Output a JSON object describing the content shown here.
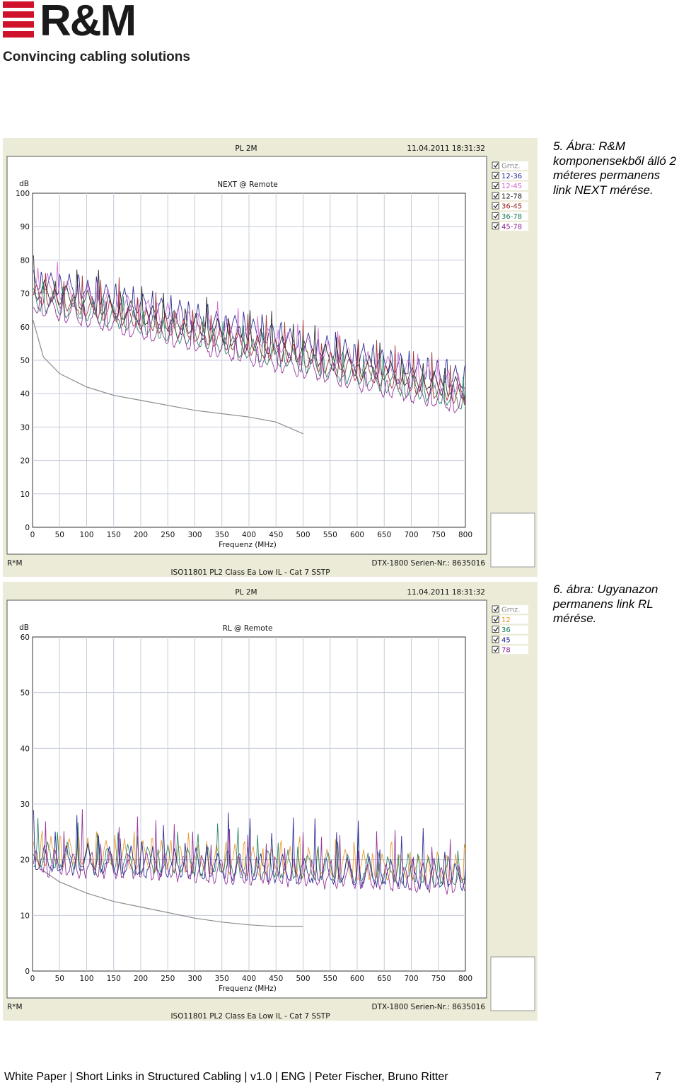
{
  "brand": {
    "name": "R&M",
    "tagline": "Convincing cabling solutions",
    "color": "#d0112b"
  },
  "figures": [
    {
      "caption": "5. Ábra: R&M komponensekből álló 2 méteres permanens link NEXT mérése.",
      "header_title": "PL 2M",
      "header_date": "11.04.2011 18:31:32",
      "footer_left": "R*M",
      "footer_device": "DTX-1800  Serien-Nr.: 8635016",
      "footer_standard": "ISO11801 PL2 Class Ea Low IL - Cat 7 SSTP",
      "chart_data": {
        "type": "line",
        "title": "NEXT @ Remote",
        "ylabel": "dB",
        "xlabel": "Frequenz (MHz)",
        "xlim": [
          0,
          800
        ],
        "ylim": [
          0,
          100
        ],
        "x_ticks": [
          0,
          50,
          100,
          150,
          200,
          250,
          300,
          350,
          400,
          450,
          500,
          550,
          600,
          650,
          700,
          750,
          800
        ],
        "y_ticks": [
          0,
          10,
          20,
          30,
          40,
          50,
          60,
          70,
          80,
          90,
          100
        ],
        "grid": true,
        "legend": [
          {
            "name": "Grnz.",
            "color": "#8c8c8c"
          },
          {
            "name": "12-36",
            "color": "#1a1a8c"
          },
          {
            "name": "12-45",
            "color": "#d060d0"
          },
          {
            "name": "12-78",
            "color": "#1a1a1a"
          },
          {
            "name": "36-45",
            "color": "#9c2020"
          },
          {
            "name": "36-78",
            "color": "#187a5a"
          },
          {
            "name": "45-78",
            "color": "#8a2090"
          }
        ],
        "series": [
          {
            "name": "Grnz.",
            "x": [
              1,
              20,
              50,
              100,
              150,
              200,
              250,
              300,
              350,
              400,
              450,
              500
            ],
            "y": [
              62,
              51,
              46,
              42,
              39.5,
              38,
              36.5,
              35,
              34,
              33,
              31.5,
              28
            ]
          }
        ]
      }
    },
    {
      "caption": "6. ábra: Ugyanazon permanens link RL mérése.",
      "header_title": "PL 2M",
      "header_date": "11.04.2011 18:31:32",
      "footer_left": "R*M",
      "footer_device": "DTX-1800  Serien-Nr.: 8635016",
      "footer_standard": "ISO11801 PL2 Class Ea Low IL - Cat 7 SSTP",
      "chart_data": {
        "type": "line",
        "title": "RL @ Remote",
        "ylabel": "dB",
        "xlabel": "Frequenz (MHz)",
        "xlim": [
          0,
          800
        ],
        "ylim": [
          0,
          60
        ],
        "x_ticks": [
          0,
          50,
          100,
          150,
          200,
          250,
          300,
          350,
          400,
          450,
          500,
          550,
          600,
          650,
          700,
          750,
          800
        ],
        "y_ticks": [
          0,
          10,
          20,
          30,
          40,
          50,
          60
        ],
        "grid": true,
        "legend": [
          {
            "name": "Grnz.",
            "color": "#8c8c8c"
          },
          {
            "name": "12",
            "color": "#e89020"
          },
          {
            "name": "36",
            "color": "#187a5a"
          },
          {
            "name": "45",
            "color": "#1a1a8c"
          },
          {
            "name": "78",
            "color": "#8a2090"
          }
        ],
        "series": [
          {
            "name": "Grnz.",
            "x": [
              1,
              20,
              50,
              100,
              150,
              200,
              250,
              300,
              350,
              400,
              450,
              500
            ],
            "y": [
              21,
              18,
              16,
              14,
              12.5,
              11.5,
              10.5,
              9.5,
              8.8,
              8.3,
              8,
              8
            ]
          }
        ]
      }
    }
  ],
  "footer": {
    "text": "White Paper | Short Links in Structured Cabling | v1.0 | ENG | Peter Fischer, Bruno Ritter",
    "page": "7"
  }
}
